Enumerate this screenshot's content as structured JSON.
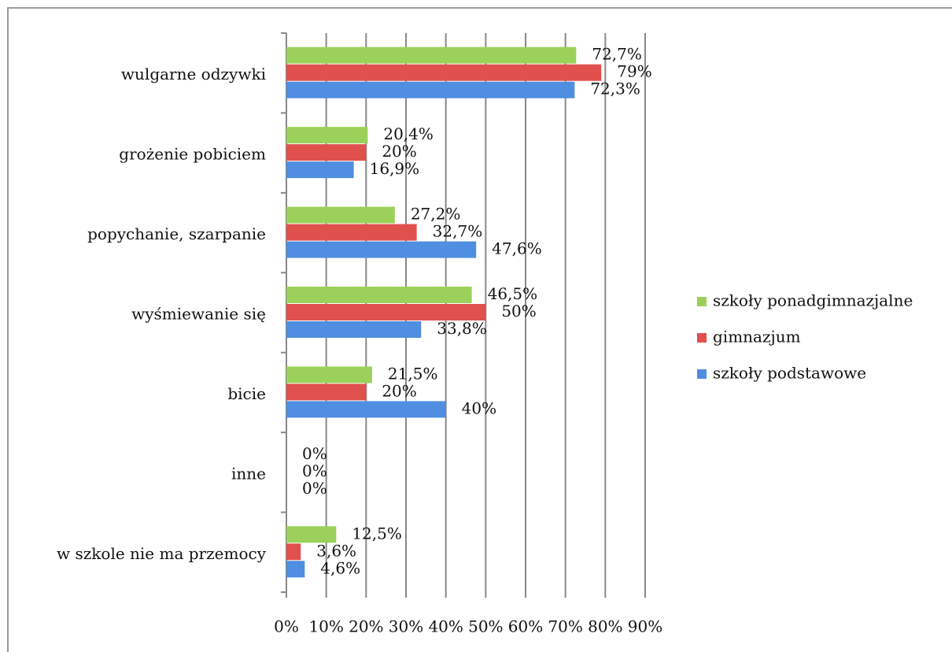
{
  "chart_data": {
    "type": "bar",
    "orientation": "horizontal",
    "categories": [
      "wulgarne odzywki",
      "grożenie pobiciem",
      "popychanie, szarpanie",
      "wyśmiewanie się",
      "bicie",
      "inne",
      "w szkole nie ma przemocy"
    ],
    "series": [
      {
        "name": "szkoły ponadgimnazjalne",
        "color": "#9bd15a",
        "values": [
          72.7,
          20.4,
          27.2,
          46.5,
          21.5,
          0,
          12.5
        ],
        "value_labels": [
          "72,7%",
          "20,4%",
          "27,2%",
          "46,5%",
          "21,5%",
          "0%",
          "12,5%"
        ]
      },
      {
        "name": "gimnazjum",
        "color": "#e0504d",
        "values": [
          79,
          20,
          32.7,
          50,
          20,
          0,
          3.6
        ],
        "value_labels": [
          "79%",
          "20%",
          "32,7%",
          "50%",
          "20%",
          "0%",
          "3,6%"
        ]
      },
      {
        "name": "szkoły podstawowe",
        "color": "#4f8ee0",
        "values": [
          72.3,
          16.9,
          47.6,
          33.8,
          40,
          0,
          4.6
        ],
        "value_labels": [
          "72,3%",
          "16,9%",
          "47,6%",
          "33,8%",
          "40%",
          "0%",
          "4,6%"
        ]
      }
    ],
    "xlim": [
      0,
      90
    ],
    "xticks": [
      {
        "value": 0,
        "label": "0%"
      },
      {
        "value": 10,
        "label": "10%"
      },
      {
        "value": 20,
        "label": "20%"
      },
      {
        "value": 30,
        "label": "30%"
      },
      {
        "value": 40,
        "label": "40%"
      },
      {
        "value": 50,
        "label": "50%"
      },
      {
        "value": 60,
        "label": "60%"
      },
      {
        "value": 70,
        "label": "70%"
      },
      {
        "value": 80,
        "label": "80%"
      },
      {
        "value": 90,
        "label": "90%"
      }
    ],
    "grid": true,
    "legend": "right"
  }
}
